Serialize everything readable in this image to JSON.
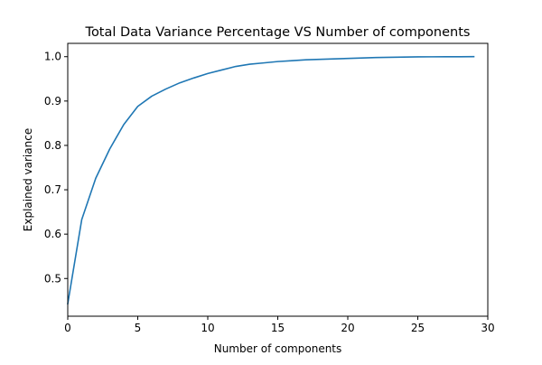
{
  "chart_data": {
    "type": "line",
    "title": "Total Data Variance Percentage VS Number of components",
    "xlabel": "Number of components",
    "ylabel": "Explained variance",
    "xlim": [
      0,
      30
    ],
    "ylim": [
      0.415,
      1.03
    ],
    "xticks": [
      0,
      5,
      10,
      15,
      20,
      25,
      30
    ],
    "yticks": [
      0.5,
      0.6,
      0.7,
      0.8,
      0.9,
      1.0
    ],
    "xtick_labels": [
      "0",
      "5",
      "10",
      "15",
      "20",
      "25",
      "30"
    ],
    "ytick_labels": [
      "0.5",
      "0.6",
      "0.7",
      "0.8",
      "0.9",
      "1.0"
    ],
    "grid": false,
    "series": [
      {
        "color": "#1f77b4",
        "x": [
          0,
          1,
          2,
          3,
          4,
          5,
          6,
          7,
          8,
          9,
          10,
          11,
          12,
          13,
          14,
          15,
          16,
          17,
          18,
          19,
          20,
          21,
          22,
          23,
          24,
          25,
          26,
          27,
          28,
          29
        ],
        "y": [
          0.443,
          0.633,
          0.726,
          0.792,
          0.847,
          0.888,
          0.911,
          0.927,
          0.941,
          0.952,
          0.962,
          0.97,
          0.978,
          0.983,
          0.986,
          0.989,
          0.991,
          0.993,
          0.994,
          0.995,
          0.996,
          0.997,
          0.998,
          0.9985,
          0.999,
          0.9995,
          0.9997,
          0.9998,
          0.9999,
          1.0
        ]
      }
    ]
  }
}
